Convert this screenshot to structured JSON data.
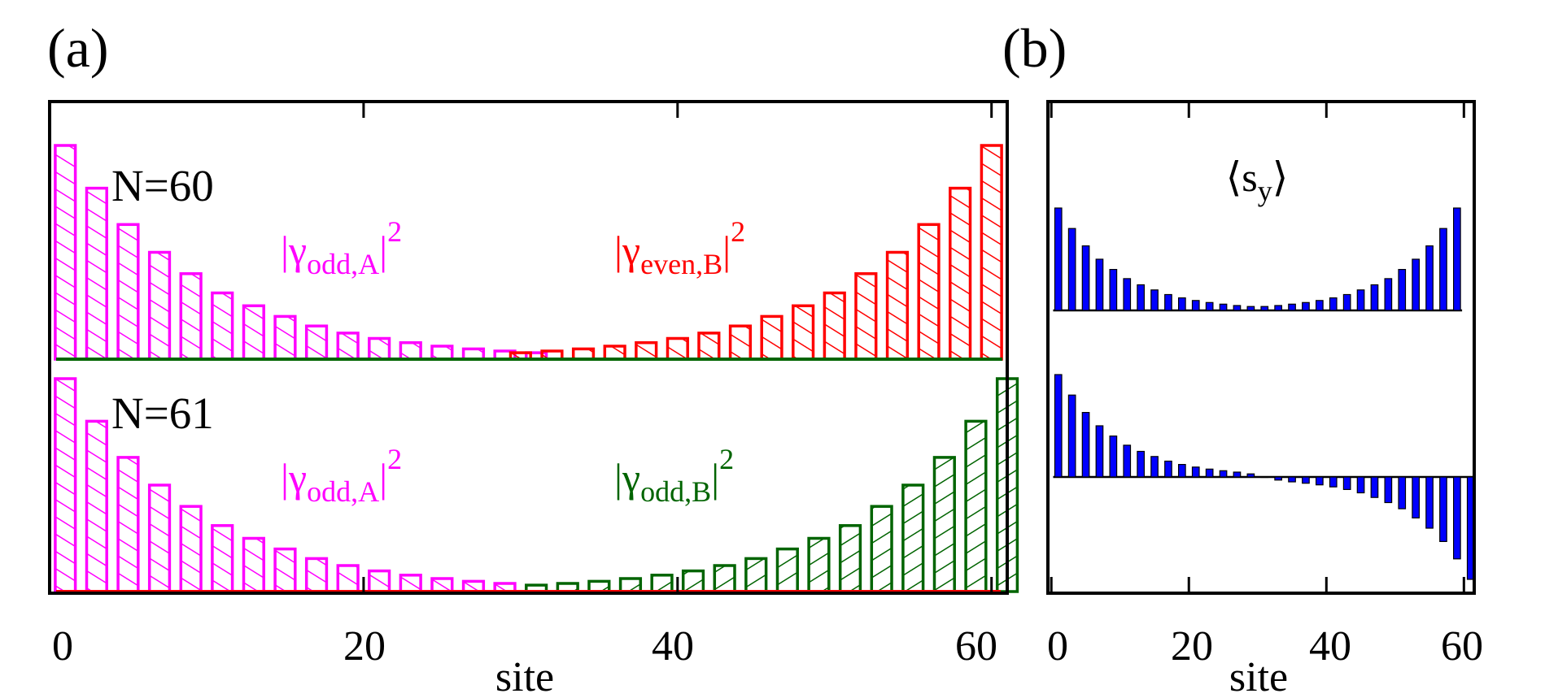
{
  "chart_data": [
    {
      "type": "bar",
      "panel_label": "(a)",
      "xlabel": "site",
      "xlim": [
        0,
        61
      ],
      "xticks": [
        0,
        20,
        40,
        60
      ],
      "xtick_labels": [
        "0",
        "20",
        "40",
        "60"
      ],
      "style": "hatched outline bars",
      "subplots": [
        {
          "system_label": "N=60",
          "ylim": [
            0,
            1.0
          ],
          "series": [
            {
              "name": "|γodd,A|2",
              "label_base": "|γ",
              "label_sub": "odd,A",
              "label_sup_bar": "|",
              "label_sup": "2",
              "color": "#ff00ff",
              "x": [
                1,
                3,
                5,
                7,
                9,
                11,
                13,
                15,
                17,
                19,
                21,
                23,
                25,
                27,
                29,
                31
              ],
              "values": [
                1.0,
                0.8,
                0.63,
                0.5,
                0.4,
                0.31,
                0.25,
                0.2,
                0.155,
                0.122,
                0.097,
                0.077,
                0.061,
                0.048,
                0.038,
                0.03
              ]
            },
            {
              "name": "|γeven,B|2",
              "label_base": "|γ",
              "label_sub": "even,B",
              "label_sup_bar": "|",
              "label_sup": "2",
              "color": "#ff0000",
              "x": [
                30,
                32,
                34,
                36,
                38,
                40,
                42,
                44,
                46,
                48,
                50,
                52,
                54,
                56,
                58,
                60
              ],
              "values": [
                0.03,
                0.038,
                0.048,
                0.061,
                0.077,
                0.097,
                0.122,
                0.155,
                0.2,
                0.25,
                0.31,
                0.4,
                0.5,
                0.63,
                0.8,
                1.0
              ]
            }
          ]
        },
        {
          "system_label": "N=61",
          "ylim": [
            0,
            1.0
          ],
          "series": [
            {
              "name": "|γodd,A|2",
              "label_base": "|γ",
              "label_sub": "odd,A",
              "label_sup_bar": "|",
              "label_sup": "2",
              "color": "#ff00ff",
              "x": [
                1,
                3,
                5,
                7,
                9,
                11,
                13,
                15,
                17,
                19,
                21,
                23,
                25,
                27,
                29
              ],
              "values": [
                1.0,
                0.8,
                0.63,
                0.5,
                0.4,
                0.31,
                0.25,
                0.2,
                0.155,
                0.122,
                0.097,
                0.077,
                0.061,
                0.048,
                0.038
              ]
            },
            {
              "name": "|γodd,B|2",
              "label_base": "|γ",
              "label_sub": "odd,B",
              "label_sup_bar": "|",
              "label_sup": "2",
              "color": "#006400",
              "x": [
                31,
                33,
                35,
                37,
                39,
                41,
                43,
                45,
                47,
                49,
                51,
                53,
                55,
                57,
                59,
                61
              ],
              "values": [
                0.03,
                0.038,
                0.048,
                0.061,
                0.077,
                0.097,
                0.122,
                0.155,
                0.2,
                0.25,
                0.31,
                0.4,
                0.5,
                0.63,
                0.8,
                1.0
              ]
            }
          ]
        }
      ]
    },
    {
      "type": "bar",
      "panel_label": "(b)",
      "annotation": "⟨sy⟩",
      "annotation_base": "⟨s",
      "annotation_sub": "y",
      "annotation_close": "⟩",
      "xlabel": "site",
      "xlim": [
        -0.5,
        61.5
      ],
      "xticks": [
        0,
        20,
        40,
        60
      ],
      "xtick_labels": [
        "0",
        "20",
        "40",
        "60"
      ],
      "color": "#0000ff",
      "subplots": [
        {
          "system": "N=60",
          "ylim": [
            0,
            1.0
          ],
          "x": [
            1,
            3,
            5,
            7,
            9,
            11,
            13,
            15,
            17,
            19,
            21,
            23,
            25,
            27,
            29,
            31,
            33,
            35,
            37,
            39,
            41,
            43,
            45,
            47,
            49,
            51,
            53,
            55,
            57,
            59
          ],
          "values": [
            1.0,
            0.8,
            0.63,
            0.5,
            0.4,
            0.31,
            0.25,
            0.2,
            0.155,
            0.122,
            0.097,
            0.077,
            0.061,
            0.048,
            0.038,
            0.038,
            0.048,
            0.061,
            0.077,
            0.097,
            0.122,
            0.155,
            0.2,
            0.25,
            0.31,
            0.4,
            0.5,
            0.63,
            0.8,
            1.0
          ]
        },
        {
          "system": "N=61",
          "ylim": [
            -1.0,
            1.0
          ],
          "x": [
            1,
            3,
            5,
            7,
            9,
            11,
            13,
            15,
            17,
            19,
            21,
            23,
            25,
            27,
            29,
            31,
            33,
            35,
            37,
            39,
            41,
            43,
            45,
            47,
            49,
            51,
            53,
            55,
            57,
            59,
            61
          ],
          "values": [
            1.0,
            0.8,
            0.63,
            0.5,
            0.4,
            0.31,
            0.25,
            0.2,
            0.155,
            0.122,
            0.097,
            0.077,
            0.061,
            0.048,
            0.03,
            0.0,
            -0.03,
            -0.048,
            -0.061,
            -0.077,
            -0.097,
            -0.122,
            -0.155,
            -0.2,
            -0.25,
            -0.31,
            -0.4,
            -0.5,
            -0.63,
            -0.8,
            -1.0
          ]
        }
      ]
    }
  ]
}
